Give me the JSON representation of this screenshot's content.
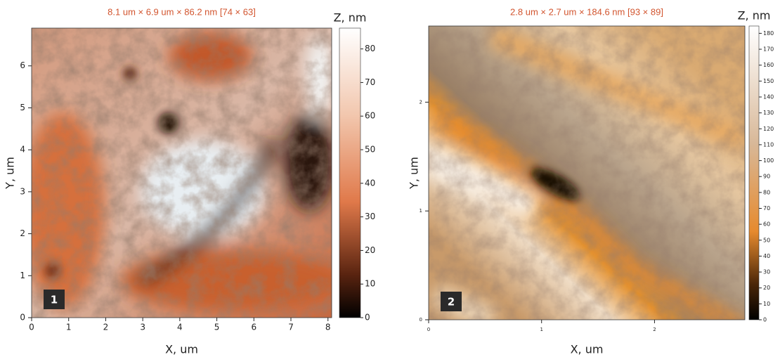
{
  "chart_data": [
    {
      "type": "heatmap",
      "title": "8.1 um × 6.9 um × 86.2 nm [74 × 63]",
      "panel_label": "1",
      "xlabel": "X, um",
      "ylabel": "Y, um",
      "zlabel": "Z, nm",
      "xlim": [
        0,
        8.1
      ],
      "ylim": [
        0,
        6.9
      ],
      "zlim": [
        0,
        86.2
      ],
      "xticks": [
        0,
        1,
        2,
        3,
        4,
        5,
        6,
        7,
        8
      ],
      "yticks": [
        0,
        1,
        2,
        3,
        4,
        5,
        6
      ],
      "zticks": [
        0,
        10,
        20,
        30,
        40,
        50,
        60,
        70,
        80
      ]
    },
    {
      "type": "heatmap",
      "title": "2.8 um × 2.7 um × 184.6 nm [93 × 89]",
      "panel_label": "2",
      "xlabel": "X, um",
      "ylabel": "Y, um",
      "zlabel": "Z, nm",
      "xlim": [
        0,
        2.8
      ],
      "ylim": [
        0,
        2.7
      ],
      "zlim": [
        0,
        184.6
      ],
      "xticks": [
        0,
        1,
        2
      ],
      "yticks": [
        0,
        1,
        2
      ],
      "zticks": [
        0,
        10,
        20,
        30,
        40,
        50,
        60,
        70,
        80,
        90,
        100,
        110,
        120,
        130,
        140,
        150,
        160,
        170,
        180
      ]
    }
  ]
}
